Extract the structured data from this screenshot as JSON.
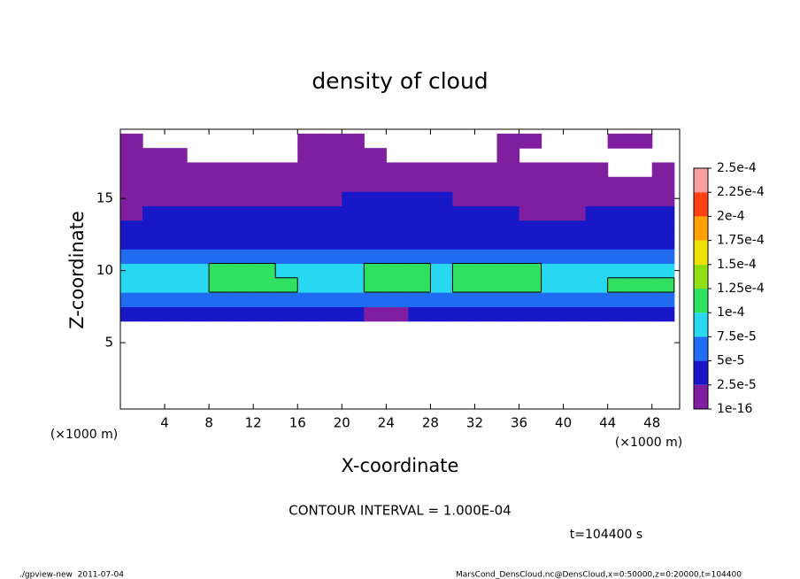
{
  "chart_data": {
    "type": "contour",
    "title": "density of cloud",
    "xlabel": "X-coordinate",
    "ylabel": "Z-coordinate",
    "x_unit": "(×1000 m)",
    "y_unit": "(×1000 m)",
    "xlim": [
      0,
      50.5
    ],
    "ylim": [
      0.4,
      19.8
    ],
    "xticks": [
      4,
      8,
      12,
      16,
      20,
      24,
      28,
      32,
      36,
      40,
      44,
      48
    ],
    "yticks": [
      5,
      10,
      15
    ],
    "field": {
      "x": [
        1,
        3,
        5,
        7,
        9,
        11,
        13,
        15,
        17,
        19,
        21,
        23,
        25,
        27,
        29,
        31,
        33,
        35,
        37,
        39,
        41,
        43,
        45,
        47,
        49
      ],
      "z": [
        7,
        8,
        9,
        10,
        11,
        12,
        13,
        14,
        15,
        16,
        17,
        18,
        19
      ],
      "values": [
        [
          4e-05,
          4e-05,
          3e-05,
          4e-05,
          4e-05,
          4e-05,
          4e-05,
          4e-05,
          4e-05,
          4e-05,
          4e-05,
          2e-05,
          2e-05,
          4e-05,
          4e-05,
          4e-05,
          4e-05,
          4e-05,
          4e-05,
          4e-05,
          4e-05,
          3e-05,
          4e-05,
          4e-05,
          4e-05
        ],
        [
          7e-05,
          7e-05,
          7e-05,
          7e-05,
          7e-05,
          7e-05,
          7e-05,
          7e-05,
          7e-05,
          7e-05,
          7e-05,
          5e-05,
          5e-05,
          7e-05,
          7e-05,
          7e-05,
          7e-05,
          7e-05,
          7e-05,
          7e-05,
          7e-05,
          7e-05,
          7e-05,
          7e-05,
          7e-05
        ],
        [
          9e-05,
          9e-05,
          9e-05,
          9e-05,
          0.000105,
          0.000105,
          0.000105,
          0.000105,
          9e-05,
          9e-05,
          9e-05,
          0.00011,
          0.00011,
          0.00011,
          9e-05,
          0.000105,
          0.000105,
          0.000105,
          0.000105,
          9e-05,
          9e-05,
          9e-05,
          0.000102,
          0.000102,
          0.000102
        ],
        [
          8e-05,
          8e-05,
          8e-05,
          8e-05,
          0.000105,
          0.000105,
          0.000105,
          9e-05,
          8e-05,
          8e-05,
          8e-05,
          0.000115,
          0.000115,
          0.000115,
          9e-05,
          0.00011,
          0.00011,
          0.00011,
          0.00011,
          8e-05,
          8e-05,
          8e-05,
          8.5e-05,
          8.5e-05,
          8.5e-05
        ],
        [
          6e-05,
          6e-05,
          6e-05,
          6e-05,
          6e-05,
          6e-05,
          6e-05,
          6e-05,
          6e-05,
          6e-05,
          6e-05,
          7e-05,
          7e-05,
          7e-05,
          6e-05,
          6e-05,
          6e-05,
          6e-05,
          6e-05,
          6e-05,
          6e-05,
          6e-05,
          6e-05,
          6e-05,
          6e-05
        ],
        [
          4.5e-05,
          4.5e-05,
          4.5e-05,
          4.5e-05,
          4.5e-05,
          4.5e-05,
          4.5e-05,
          4.5e-05,
          4.5e-05,
          4.5e-05,
          4.5e-05,
          4.5e-05,
          4.5e-05,
          4.5e-05,
          4.5e-05,
          4.5e-05,
          4.5e-05,
          4.5e-05,
          4.5e-05,
          4.5e-05,
          4.5e-05,
          4.5e-05,
          4.5e-05,
          4.5e-05,
          4.5e-05
        ],
        [
          3e-05,
          3e-05,
          3.5e-05,
          3.5e-05,
          3.5e-05,
          3.5e-05,
          3.5e-05,
          3.5e-05,
          3.5e-05,
          3.5e-05,
          3.5e-05,
          3.5e-05,
          3.5e-05,
          3.5e-05,
          3.5e-05,
          3.5e-05,
          3.5e-05,
          3.5e-05,
          3.5e-05,
          3.5e-05,
          3.5e-05,
          3.5e-05,
          3.5e-05,
          3.5e-05,
          3.5e-05
        ],
        [
          1.5e-05,
          2.7e-05,
          2.7e-05,
          2.7e-05,
          2.7e-05,
          2.7e-05,
          2.7e-05,
          2.7e-05,
          2.7e-05,
          2.7e-05,
          2.7e-05,
          2.7e-05,
          2.7e-05,
          2.7e-05,
          2.7e-05,
          2.7e-05,
          2.7e-05,
          2.7e-05,
          2e-05,
          2e-05,
          2e-05,
          2.7e-05,
          2.7e-05,
          2.7e-05,
          2.7e-05
        ],
        [
          1e-05,
          1e-05,
          1e-05,
          1e-05,
          1e-05,
          2e-05,
          2e-05,
          2e-05,
          2e-05,
          2e-05,
          2.6e-05,
          2.6e-05,
          2.6e-05,
          2.6e-05,
          2.6e-05,
          2e-05,
          2e-05,
          2e-05,
          1e-05,
          1e-05,
          1e-05,
          1e-05,
          1e-05,
          1.5e-05,
          1.5e-05
        ],
        [
          5e-06,
          5e-06,
          5e-06,
          5e-06,
          5e-06,
          5e-06,
          5e-06,
          5e-06,
          5e-06,
          5e-06,
          5e-06,
          1.5e-05,
          1.5e-05,
          1.5e-05,
          5e-06,
          5e-06,
          5e-06,
          5e-06,
          5e-06,
          5e-06,
          5e-06,
          5e-06,
          5e-06,
          5e-06,
          5e-06
        ],
        [
          2e-06,
          2e-06,
          2e-06,
          2e-06,
          2e-06,
          2e-06,
          2e-06,
          2e-06,
          2e-06,
          2e-06,
          2e-06,
          2e-06,
          2e-06,
          2e-06,
          2e-06,
          2e-06,
          2e-06,
          2e-06,
          2e-06,
          2e-06,
          2e-06,
          2e-06,
          null,
          null,
          2e-06
        ],
        [
          2e-06,
          2e-06,
          2e-06,
          null,
          null,
          null,
          null,
          null,
          2e-06,
          2e-06,
          2e-06,
          2e-06,
          null,
          null,
          null,
          null,
          null,
          2e-06,
          null,
          null,
          null,
          null,
          null,
          null,
          null
        ],
        [
          2e-06,
          null,
          null,
          null,
          null,
          null,
          null,
          null,
          2e-06,
          2e-06,
          2e-06,
          null,
          null,
          null,
          null,
          null,
          null,
          2e-06,
          2e-06,
          null,
          null,
          null,
          2e-06,
          2e-06,
          null
        ]
      ]
    },
    "levels": [
      {
        "value": 1e-16,
        "label": "1e-16"
      },
      {
        "value": 2.5e-05,
        "label": "2.5e-5"
      },
      {
        "value": 5e-05,
        "label": "5e-5"
      },
      {
        "value": 7.5e-05,
        "label": "7.5e-5"
      },
      {
        "value": 0.0001,
        "label": "1e-4"
      },
      {
        "value": 0.000125,
        "label": "1.25e-4"
      },
      {
        "value": 0.00015,
        "label": "1.5e-4"
      },
      {
        "value": 0.000175,
        "label": "1.75e-4"
      },
      {
        "value": 0.0002,
        "label": "2e-4"
      },
      {
        "value": 0.000225,
        "label": "2.25e-4"
      },
      {
        "value": 0.00025,
        "label": "2.5e-4"
      }
    ],
    "colors": [
      "#7f1fa0",
      "#1818c8",
      "#1f6cf0",
      "#28d8f0",
      "#30e060",
      "#90e010",
      "#f0e000",
      "#ffa000",
      "#ff4010",
      "#f8a0a0"
    ],
    "contour_interval": 0.0001,
    "contour_note": "CONTOUR INTERVAL = 1.000E-04",
    "time_label": "t=104400 s",
    "footer_left": "./gpview-new  2011-07-04",
    "footer_right": "MarsCond_DensCloud.nc@DensCloud,x=0:50000,z=0:20000,t=104400"
  }
}
